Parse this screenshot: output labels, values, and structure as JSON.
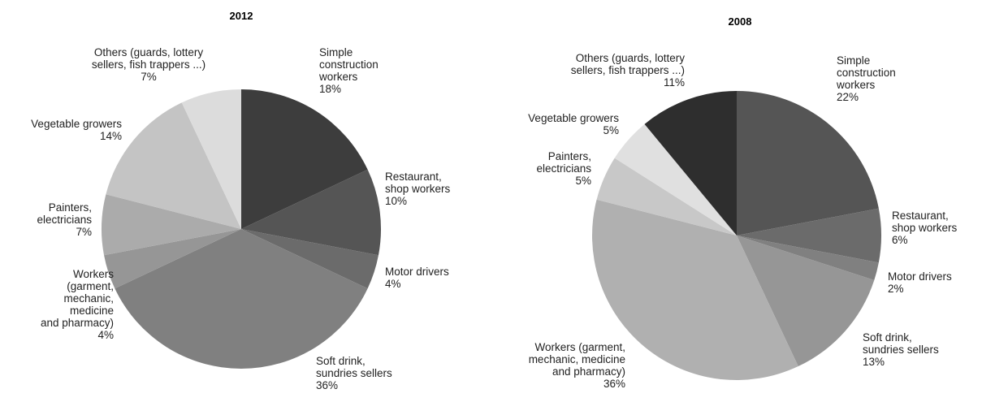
{
  "chart_data": [
    {
      "type": "pie",
      "title": "2012",
      "categories": [
        "Simple\nconstruction\nworkers",
        "Restaurant,\nshop workers",
        "Motor drivers",
        "Soft drink,\nsundries sellers",
        "Workers\n(garment,\nmechanic,\nmedicine\nand pharmacy)",
        "Painters,\nelectricians",
        "Vegetable growers",
        "Others (guards, lottery\nsellers, fish trappers ...)"
      ],
      "values": [
        18,
        10,
        4,
        36,
        4,
        7,
        14,
        7
      ],
      "value_labels": [
        "18%",
        "10%",
        "4%",
        "36%",
        "4%",
        "7%",
        "14%",
        "7%"
      ],
      "colors": [
        "#3d3d3d",
        "#555555",
        "#6b6b6b",
        "#808080",
        "#969696",
        "#ababab",
        "#c4c4c4",
        "#dcdcdc"
      ]
    },
    {
      "type": "pie",
      "title": "2008",
      "categories": [
        "Simple\nconstruction\nworkers",
        "Restaurant,\nshop workers",
        "Motor drivers",
        "Soft drink,\nsundries sellers",
        "Workers (garment,\nmechanic, medicine\nand pharmacy)",
        "Painters,\nelectricians",
        "Vegetable growers",
        "Others (guards, lottery\nsellers, fish trappers ...)"
      ],
      "values": [
        22,
        6,
        2,
        13,
        36,
        5,
        5,
        11
      ],
      "value_labels": [
        "22%",
        "6%",
        "2%",
        "13%",
        "36%",
        "5%",
        "5%",
        "11%"
      ],
      "colors": [
        "#555555",
        "#6b6b6b",
        "#808080",
        "#969696",
        "#b0b0b0",
        "#c8c8c8",
        "#e0e0e0",
        "#2e2e2e"
      ]
    }
  ]
}
